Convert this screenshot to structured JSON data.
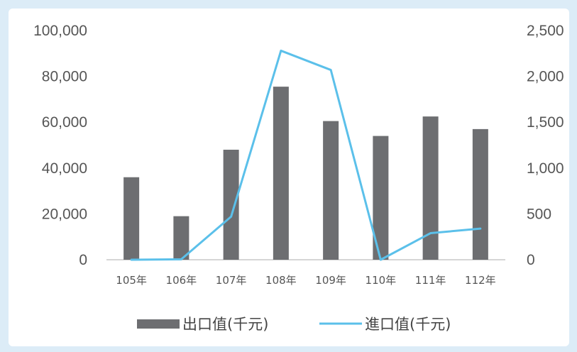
{
  "chart_data": {
    "type": "bar",
    "categories": [
      "105年",
      "106年",
      "107年",
      "108年",
      "109年",
      "110年",
      "111年",
      "112年"
    ],
    "series": [
      {
        "name": "出口值(千元)",
        "type": "bar",
        "axis": "left",
        "values": [
          36000,
          19000,
          48000,
          75500,
          60500,
          54000,
          62500,
          57000
        ]
      },
      {
        "name": "進口值(千元)",
        "type": "line",
        "axis": "right",
        "values": [
          0,
          5,
          470,
          2280,
          2070,
          0,
          290,
          340
        ]
      }
    ],
    "y_left": {
      "min": 0,
      "max": 100000,
      "ticks": [
        "0",
        "20,000",
        "40,000",
        "60,000",
        "80,000",
        "100,000"
      ]
    },
    "y_right": {
      "min": 0,
      "max": 2500,
      "ticks": [
        "0",
        "500",
        "1,000",
        "1,500",
        "2,000",
        "2,500"
      ]
    },
    "grid": false,
    "legend_position": "bottom",
    "colors": {
      "bar": "#6d6e71",
      "line": "#5bc0ea",
      "axis": "#c8c8c8",
      "text": "#555555"
    }
  }
}
